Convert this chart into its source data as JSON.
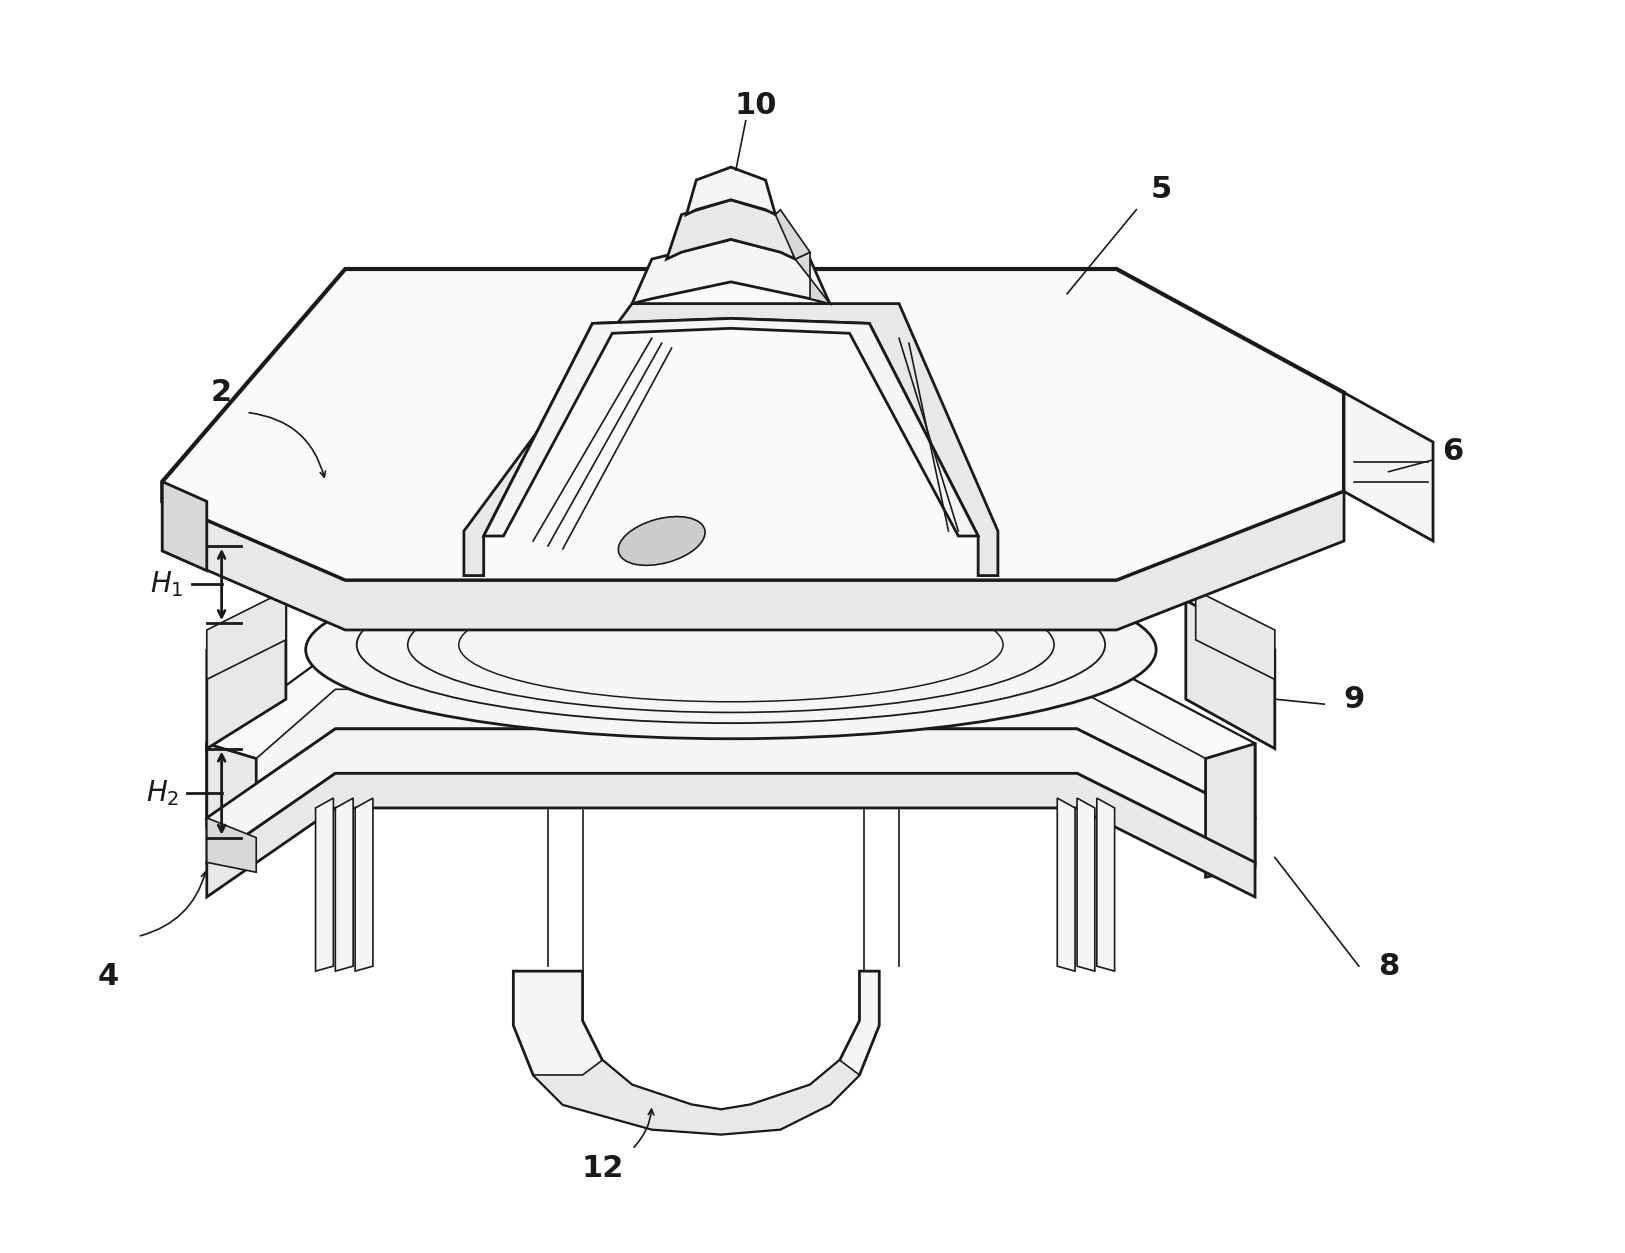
{
  "bg_color": "#ffffff",
  "line_color": "#1a1a1a",
  "lw_main": 2.0,
  "lw_thin": 1.2,
  "fig_width": 16.25,
  "fig_height": 12.53,
  "face_light": "#f5f5f5",
  "face_mid": "#e8e8e8",
  "face_dark": "#d8d8d8",
  "face_white": "#fafafa"
}
